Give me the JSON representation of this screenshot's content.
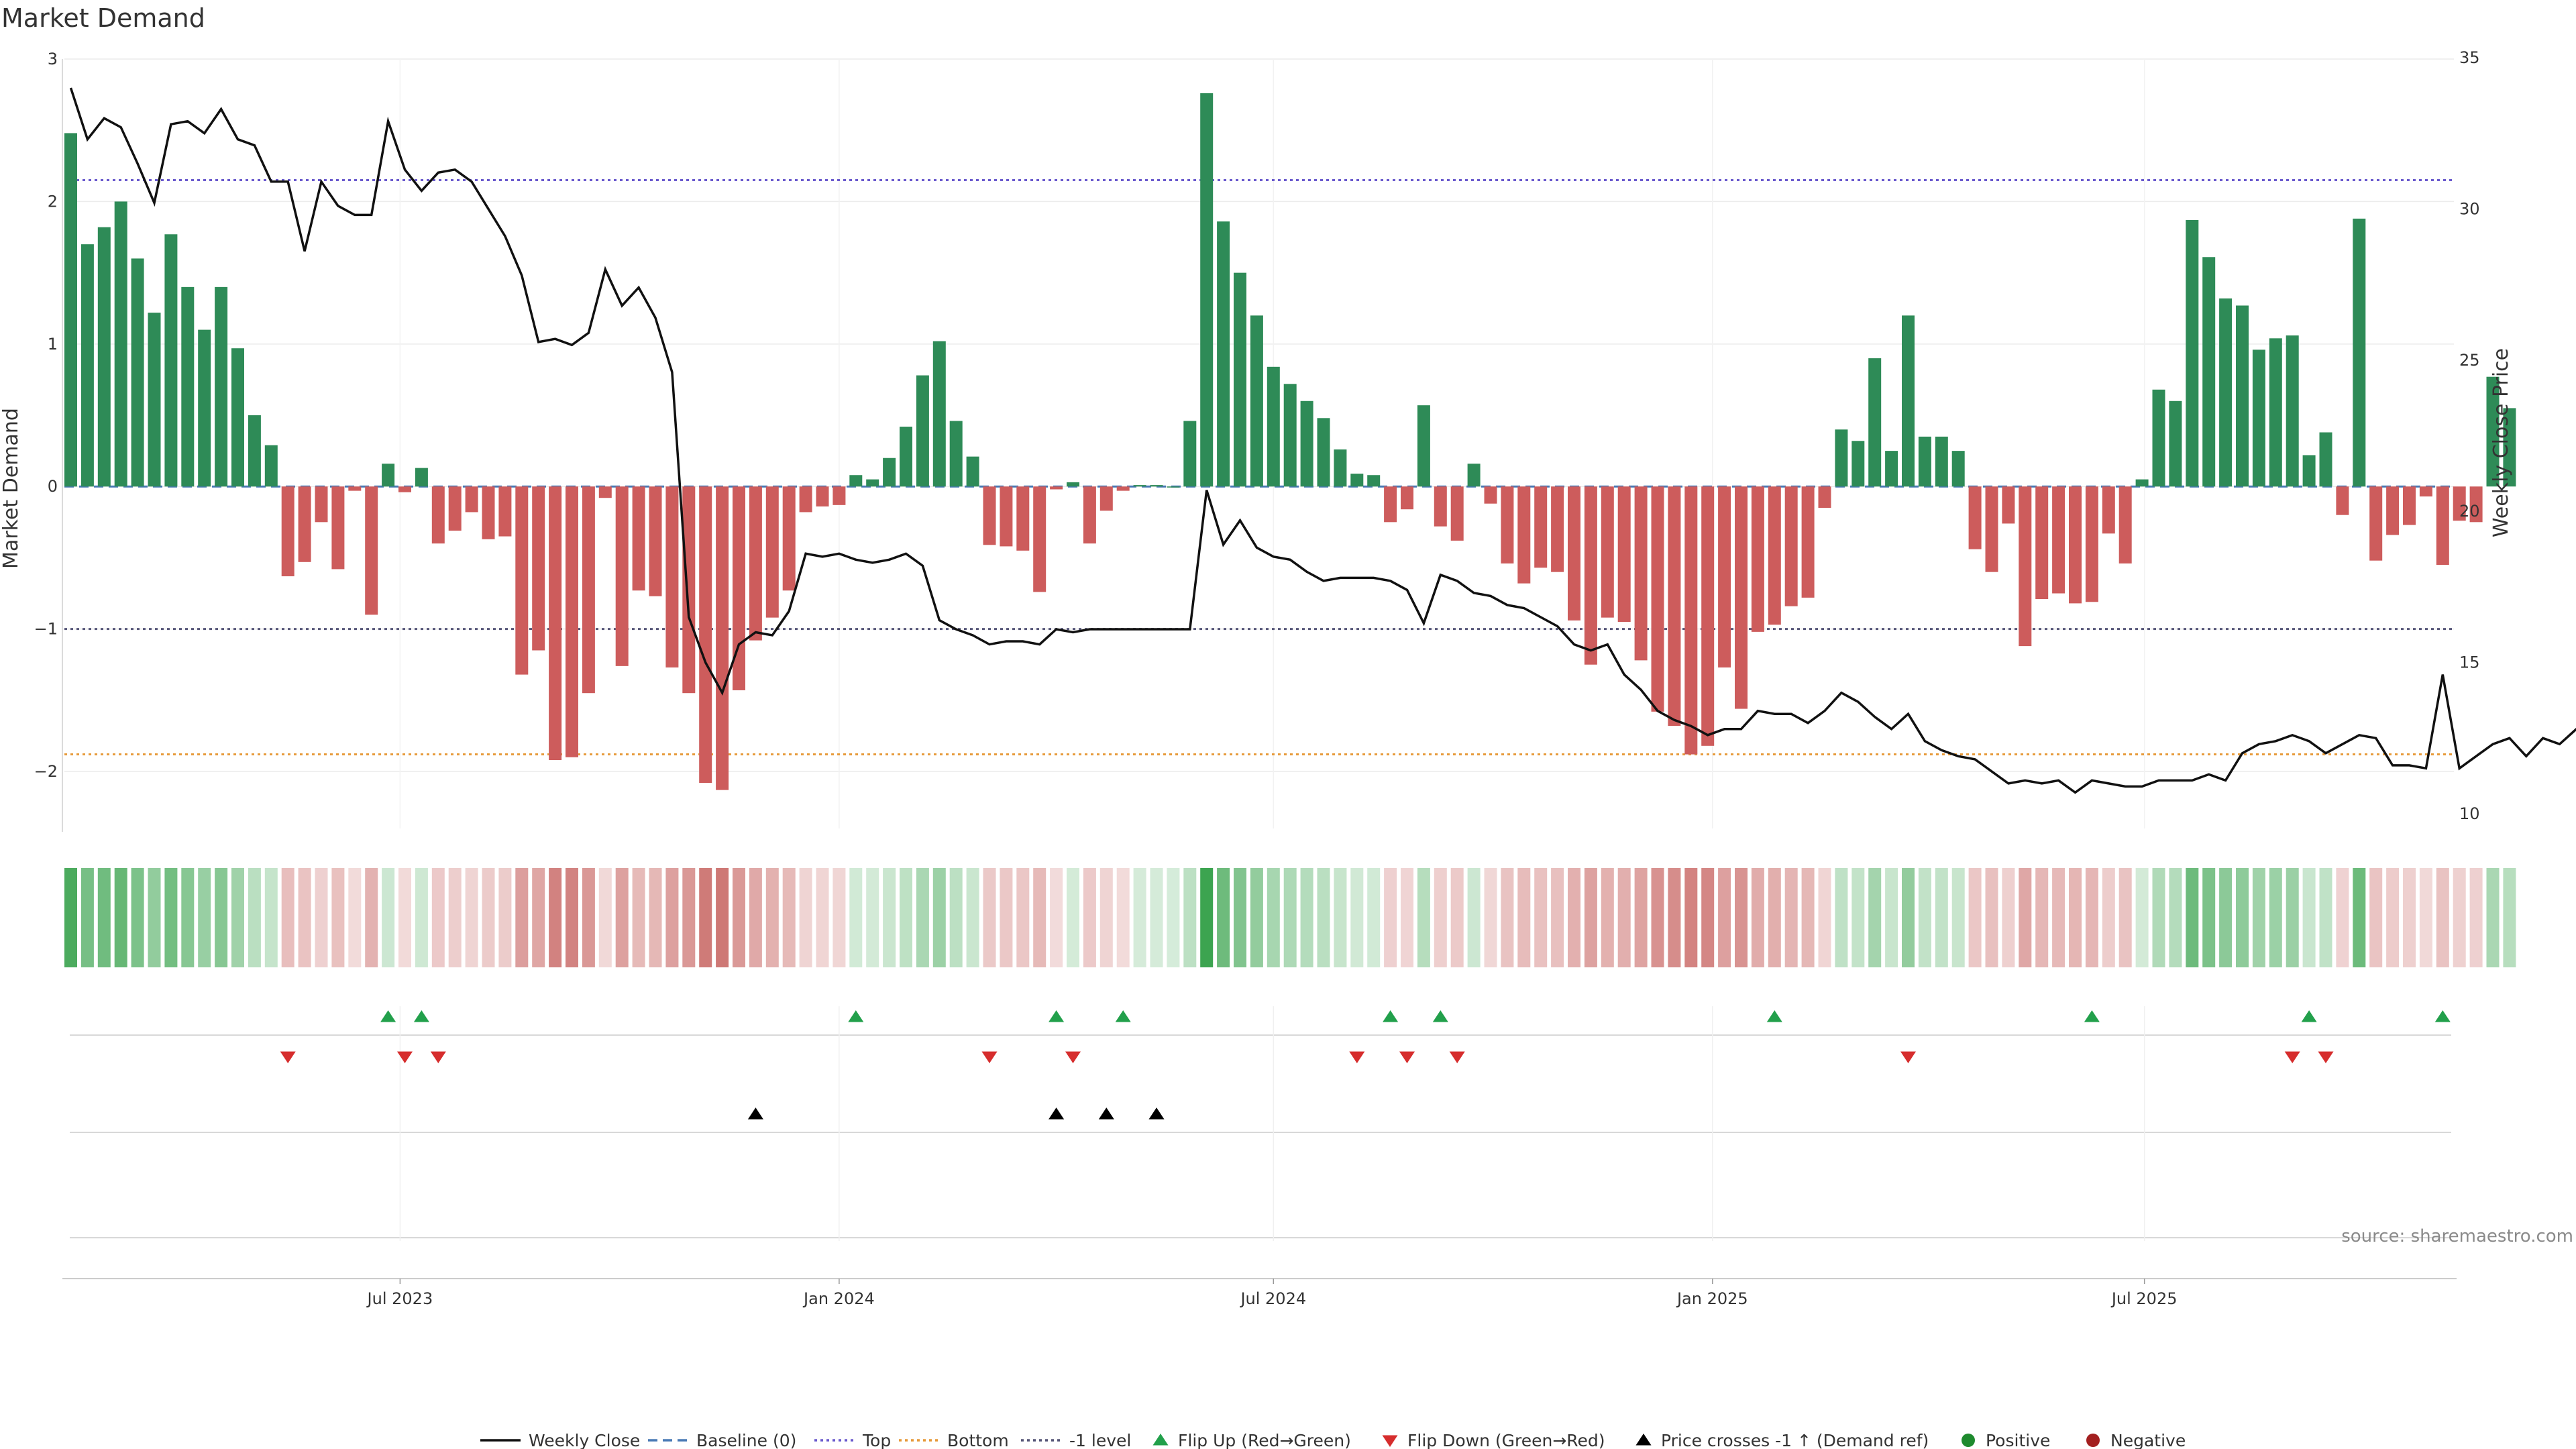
{
  "chart_data": {
    "type": "bar+line",
    "title": "Market Demand",
    "ylabel_left": "Market Demand",
    "ylabel_right": "Weekly Close Price",
    "ylim_left": [
      -2.4,
      3.0
    ],
    "ylim_right": [
      10,
      35
    ],
    "left_ticks": [
      3,
      2,
      1,
      0,
      -1,
      -2
    ],
    "left_tick_labels": [
      "3",
      "2",
      "1",
      "0",
      "−1",
      "−2"
    ],
    "right_ticks": [
      35,
      30,
      25,
      20,
      15,
      10
    ],
    "right_tick_labels": [
      "35",
      "30",
      "25",
      "20",
      "15",
      "10"
    ],
    "reference_lines": {
      "top": 2.15,
      "minus_one": -1.0,
      "bottom": -1.88,
      "baseline": 0
    },
    "start_date": "2023-02-13",
    "x_ticks": [
      {
        "label": "Jul 2023",
        "date": "2023-07-01"
      },
      {
        "label": "Jan 2024",
        "date": "2024-01-01"
      },
      {
        "label": "Jul 2024",
        "date": "2024-07-01"
      },
      {
        "label": "Jan 2025",
        "date": "2025-01-01"
      },
      {
        "label": "Jul 2025",
        "date": "2025-07-01"
      }
    ],
    "demand": [
      2.48,
      1.7,
      1.82,
      2.0,
      1.6,
      1.22,
      1.77,
      1.4,
      1.1,
      1.4,
      0.97,
      0.5,
      0.29,
      -0.63,
      -0.53,
      -0.25,
      -0.58,
      -0.03,
      -0.9,
      0.16,
      -0.04,
      0.13,
      -0.4,
      -0.31,
      -0.18,
      -0.37,
      -0.35,
      -1.32,
      -1.15,
      -1.92,
      -1.9,
      -1.45,
      -0.08,
      -1.26,
      -0.73,
      -0.77,
      -1.27,
      -1.45,
      -2.08,
      -2.13,
      -1.43,
      -1.08,
      -0.92,
      -0.73,
      -0.18,
      -0.14,
      -0.13,
      0.08,
      0.05,
      0.2,
      0.42,
      0.78,
      1.02,
      0.46,
      0.21,
      -0.41,
      -0.42,
      -0.45,
      -0.74,
      -0.02,
      0.03,
      -0.4,
      -0.17,
      -0.03,
      0.01,
      0.01,
      0.0,
      0.46,
      2.76,
      1.86,
      1.5,
      1.2,
      0.84,
      0.72,
      0.6,
      0.48,
      0.26,
      0.09,
      0.08,
      -0.25,
      -0.16,
      0.57,
      -0.28,
      -0.38,
      0.16,
      -0.12,
      -0.54,
      -0.68,
      -0.57,
      -0.6,
      -0.94,
      -1.25,
      -0.92,
      -0.95,
      -1.22,
      -1.58,
      -1.68,
      -1.88,
      -1.82,
      -1.27,
      -1.56,
      -1.02,
      -0.97,
      -0.84,
      -0.78,
      -0.15,
      0.4,
      0.32,
      0.9,
      0.25,
      1.2,
      0.35,
      0.35,
      0.25,
      -0.44,
      -0.6,
      -0.26,
      -1.12,
      -0.79,
      -0.75,
      -0.82,
      -0.81,
      -0.33,
      -0.54,
      0.05,
      0.68,
      0.6,
      1.87,
      1.61,
      1.32,
      1.27,
      0.96,
      1.04,
      1.06,
      0.22,
      0.38,
      -0.2,
      1.88,
      -0.52,
      -0.34,
      -0.27,
      -0.07,
      -0.55,
      -0.24,
      -0.25,
      0.77,
      0.55
    ],
    "close": [
      34.0,
      32.3,
      33.0,
      32.7,
      31.5,
      30.2,
      32.8,
      32.9,
      32.5,
      33.3,
      32.3,
      32.1,
      30.9,
      30.9,
      28.6,
      30.9,
      30.1,
      29.8,
      29.8,
      32.9,
      31.3,
      30.6,
      31.2,
      31.3,
      30.9,
      30.0,
      29.1,
      27.8,
      25.6,
      25.7,
      25.5,
      25.9,
      28.0,
      26.8,
      27.4,
      26.4,
      24.6,
      16.5,
      15.0,
      14.0,
      15.6,
      16.0,
      15.9,
      16.7,
      18.6,
      18.5,
      18.6,
      18.4,
      18.3,
      18.4,
      18.6,
      18.2,
      16.4,
      16.1,
      15.9,
      15.6,
      15.7,
      15.7,
      15.6,
      16.1,
      16.0,
      16.1,
      16.1,
      16.1,
      16.1,
      16.1,
      16.1,
      16.1,
      20.7,
      18.9,
      19.7,
      18.8,
      18.5,
      18.4,
      18.0,
      17.7,
      17.8,
      17.8,
      17.8,
      17.7,
      17.4,
      16.3,
      17.9,
      17.7,
      17.3,
      17.2,
      16.9,
      16.8,
      16.5,
      16.2,
      15.6,
      15.4,
      15.6,
      14.6,
      14.1,
      13.4,
      13.1,
      12.9,
      12.6,
      12.8,
      12.8,
      13.4,
      13.3,
      13.3,
      13.0,
      13.4,
      14.0,
      13.7,
      13.2,
      12.8,
      13.3,
      12.4,
      12.1,
      11.9,
      11.8,
      11.4,
      11.0,
      11.1,
      11.0,
      11.1,
      10.7,
      11.1,
      11.0,
      10.9,
      10.9,
      11.1,
      11.1,
      11.1,
      11.3,
      11.1,
      12.0,
      12.3,
      12.4,
      12.6,
      12.4,
      12.0,
      12.3,
      12.6,
      12.5,
      11.6,
      11.6,
      11.5,
      14.6,
      11.5,
      11.9,
      12.3,
      12.5,
      11.9,
      12.5,
      12.3,
      12.8,
      12.9
    ],
    "flip_up": [
      19,
      21,
      47,
      59,
      63,
      79,
      82,
      102,
      121,
      134,
      142
    ],
    "flip_down": [
      13,
      20,
      22,
      55,
      60,
      77,
      80,
      83,
      110,
      133,
      135
    ],
    "price_crosses": [
      41,
      59,
      62,
      65
    ],
    "legend": [
      "Weekly Close",
      "Baseline (0)",
      "Top",
      "Bottom",
      "-1 level",
      "Flip Up (Red→Green)",
      "Flip Down (Green→Red)",
      "Price crosses -1 ↑ (Demand ref)",
      "Positive",
      "Negative"
    ],
    "source": "source: sharemaestro.com"
  },
  "colors": {
    "positive": "#2e8b57",
    "negative": "#cd5c5c",
    "close": "#111111",
    "baseline": "#4a7ab5",
    "top": "#6a5acd",
    "bottom": "#e69a3a",
    "minus_one": "#555577",
    "flip_up": "#22a04b",
    "flip_down": "#d62d2d",
    "cross": "#000000",
    "positive_dot": "#1e8a2e",
    "negative_dot": "#a31f1f"
  }
}
